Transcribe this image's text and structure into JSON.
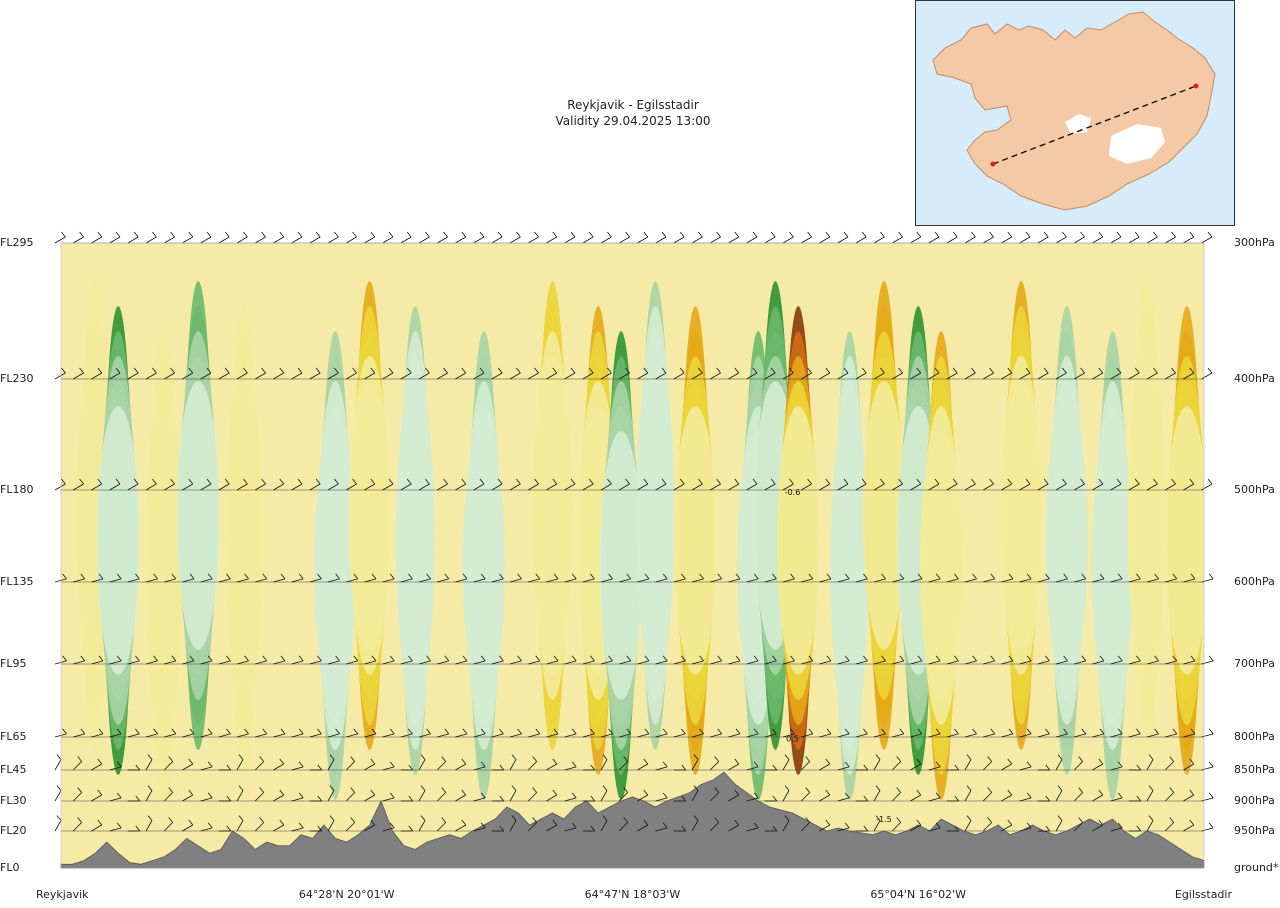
{
  "header": {
    "route": "Reykjavik - Egilsstadir",
    "validity": "Validity 29.04.2025 13:00"
  },
  "inset_map": {
    "region": "Iceland",
    "route_endpoints": [
      "Reykjavik",
      "Egilsstadir"
    ],
    "colors": {
      "sea": "#d7ecfb",
      "land": "#f3c9a6",
      "route": "#111111",
      "endpoint": "#e0221d"
    }
  },
  "chart_data": {
    "type": "heatmap",
    "title": "Reykjavik - Egilsstadir",
    "subtitle": "Validity 29.04.2025 13:00",
    "levels_left": [
      {
        "label": "FL295",
        "fl": 295
      },
      {
        "label": "FL230",
        "fl": 230
      },
      {
        "label": "FL180",
        "fl": 180
      },
      {
        "label": "FL135",
        "fl": 135
      },
      {
        "label": "FL95",
        "fl": 95
      },
      {
        "label": "FL65",
        "fl": 65
      },
      {
        "label": "FL45",
        "fl": 45
      },
      {
        "label": "FL30",
        "fl": 30
      },
      {
        "label": "FL20",
        "fl": 20
      },
      {
        "label": "FL0",
        "fl": 0
      }
    ],
    "levels_right": [
      {
        "label": "300hPa",
        "fl": 295
      },
      {
        "label": "400hPa",
        "fl": 230
      },
      {
        "label": "500hPa",
        "fl": 180
      },
      {
        "label": "600hPa",
        "fl": 135
      },
      {
        "label": "700hPa",
        "fl": 95
      },
      {
        "label": "800hPa",
        "fl": 65
      },
      {
        "label": "850hPa",
        "fl": 45
      },
      {
        "label": "900hPa",
        "fl": 30
      },
      {
        "label": "950hPa",
        "fl": 20
      },
      {
        "label": "ground*",
        "fl": 0
      }
    ],
    "x_labels": [
      {
        "label": "Reykjavik",
        "pos": 0.0
      },
      {
        "label": "64°28'N 20°01'W",
        "pos": 0.25
      },
      {
        "label": "64°47'N 18°03'W",
        "pos": 0.5
      },
      {
        "label": "65°04'N 16°02'W",
        "pos": 0.75
      },
      {
        "label": "Egilsstadir",
        "pos": 1.0
      }
    ],
    "annotations": [
      {
        "text": "-0.6",
        "pos": 0.64,
        "fl": 179
      },
      {
        "text": "0.5",
        "pos": 0.64,
        "fl": 64
      },
      {
        "text": "-1.5",
        "pos": 0.72,
        "fl": 24
      }
    ],
    "terrain_fl": [
      2,
      2,
      4,
      8,
      14,
      8,
      3,
      2,
      4,
      6,
      10,
      16,
      12,
      8,
      10,
      20,
      16,
      10,
      14,
      12,
      12,
      18,
      16,
      22,
      16,
      14,
      18,
      22,
      30,
      20,
      12,
      10,
      14,
      16,
      18,
      16,
      20,
      22,
      24,
      28,
      26,
      22,
      24,
      26,
      24,
      28,
      30,
      26,
      28,
      30,
      32,
      30,
      28,
      30,
      32,
      34,
      38,
      40,
      44,
      38,
      34,
      30,
      28,
      27,
      26,
      24,
      22,
      20,
      21,
      20,
      19,
      18,
      20,
      18,
      20,
      22,
      20,
      24,
      22,
      20,
      18,
      20,
      22,
      18,
      20,
      22,
      20,
      18,
      20,
      22,
      24,
      22,
      24,
      20,
      16,
      20,
      18,
      14,
      10,
      6,
      4
    ],
    "vertical_motion": {
      "description": "vertical velocity shading, yellow-brown negative, green positive",
      "sign_convention": "brown/yellow = negative, green = positive",
      "columns": [
        {
          "pos": 0.03,
          "value": -0.15
        },
        {
          "pos": 0.05,
          "value": 0.6
        },
        {
          "pos": 0.09,
          "value": -0.2
        },
        {
          "pos": 0.12,
          "value": 0.5
        },
        {
          "pos": 0.16,
          "value": -0.2
        },
        {
          "pos": 0.24,
          "value": 0.3
        },
        {
          "pos": 0.27,
          "value": -0.45
        },
        {
          "pos": 0.31,
          "value": 0.2
        },
        {
          "pos": 0.37,
          "value": 0.25
        },
        {
          "pos": 0.43,
          "value": -0.3
        },
        {
          "pos": 0.47,
          "value": -0.5
        },
        {
          "pos": 0.49,
          "value": 0.65
        },
        {
          "pos": 0.52,
          "value": 0.2
        },
        {
          "pos": 0.555,
          "value": -0.6
        },
        {
          "pos": 0.61,
          "value": 0.4
        },
        {
          "pos": 0.625,
          "value": 0.7
        },
        {
          "pos": 0.645,
          "value": -0.95
        },
        {
          "pos": 0.69,
          "value": 0.2
        },
        {
          "pos": 0.72,
          "value": -0.55
        },
        {
          "pos": 0.75,
          "value": 0.6
        },
        {
          "pos": 0.77,
          "value": -0.5
        },
        {
          "pos": 0.84,
          "value": -0.45
        },
        {
          "pos": 0.88,
          "value": 0.3
        },
        {
          "pos": 0.92,
          "value": 0.25
        },
        {
          "pos": 0.95,
          "value": -0.2
        },
        {
          "pos": 0.985,
          "value": -0.55
        }
      ],
      "levels": [
        -0.9,
        -0.6,
        -0.4,
        -0.2,
        -0.05,
        0.05,
        0.2,
        0.4,
        0.6,
        0.9
      ],
      "colors": [
        "#8b3a0a",
        "#cf6d14",
        "#e6a817",
        "#ecd53a",
        "#f4eb9a",
        "#fbfbea",
        "#d4ecd2",
        "#a9d4a6",
        "#6bb96c",
        "#2d9433",
        "#157a24"
      ]
    },
    "wind_barbs_fl": [
      295,
      230,
      180,
      135,
      95,
      65,
      45,
      30,
      20
    ],
    "grid": true,
    "colors": {
      "terrain": "#808080",
      "level_line": "#444444"
    }
  }
}
